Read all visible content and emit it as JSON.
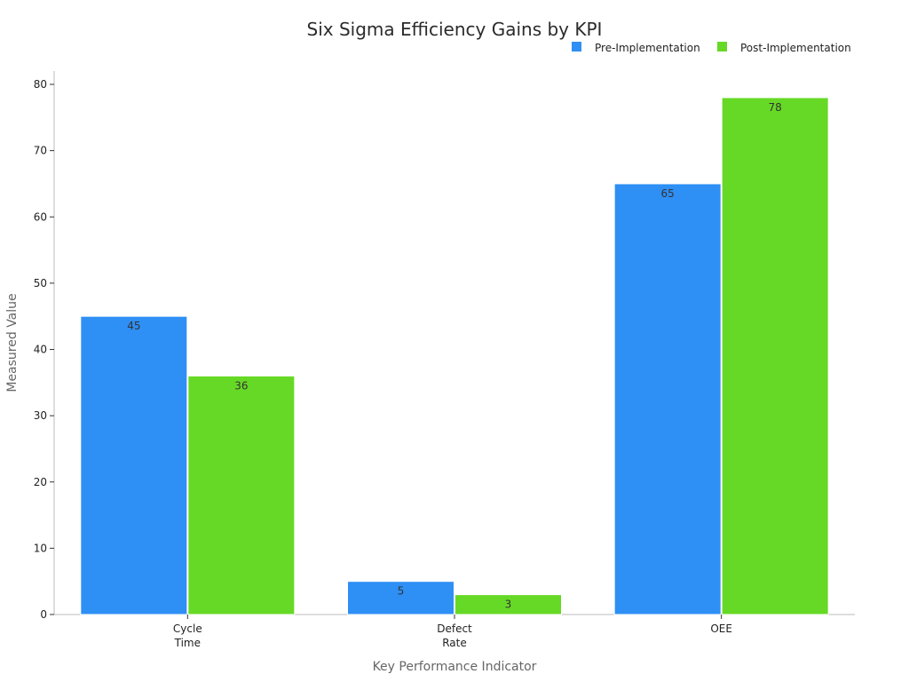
{
  "chart_data": {
    "type": "bar",
    "title": "Six Sigma Efficiency Gains by KPI",
    "xlabel": "Key Performance Indicator",
    "ylabel": "Measured Value",
    "categories": [
      [
        "Cycle",
        "Time"
      ],
      [
        "Defect",
        "Rate"
      ],
      [
        "OEE"
      ]
    ],
    "series": [
      {
        "name": "Pre-Implementation",
        "color": "#2e8ff5",
        "values": [
          45,
          5,
          65
        ]
      },
      {
        "name": "Post-Implementation",
        "color": "#66d926",
        "values": [
          36,
          3,
          78
        ]
      }
    ],
    "ylim": [
      0,
      80
    ],
    "yticks": [
      0,
      10,
      20,
      30,
      40,
      50,
      60,
      70,
      80
    ],
    "grid": false,
    "legend_position": "top-right"
  }
}
